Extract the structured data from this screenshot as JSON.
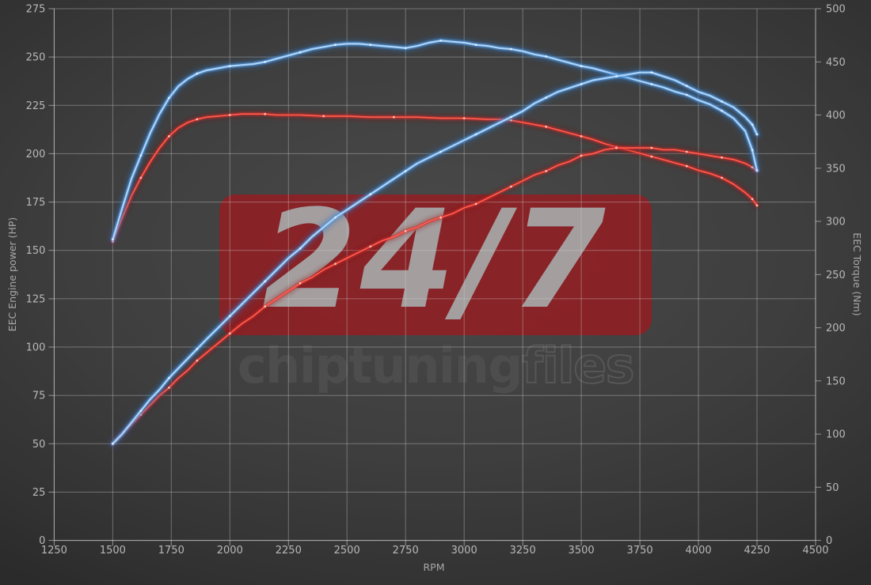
{
  "watermark": {
    "badge_text": "24/7",
    "brand_primary": "chiptuning",
    "brand_secondary": "files"
  },
  "colors": {
    "background_center": "#4a4a4a",
    "background_edge": "#2b2b2b",
    "grid": "#9e9e9e",
    "axis": "#c8c8c8",
    "tick_text": "#b8b8b8",
    "axis_title_text": "#a8a8a8",
    "watermark_badge": "#981a1f",
    "watermark_badge_text": "#a5a5a5",
    "brand_solid_text": "#4d4d4d",
    "brand_outline_text": "#565656",
    "blue_glow": "#2a6cb8",
    "blue_mid": "#4e97e0",
    "blue_core": "#aed3f7",
    "blue_dot": "#e3f2ff",
    "red_glow": "#8a1414",
    "red_mid": "#d32424",
    "red_core": "#ff6050",
    "red_dot": "#ffccc2"
  },
  "chart_data": {
    "type": "line",
    "xlabel": "RPM",
    "ylabel_left": "EEC Engine power (HP)",
    "ylabel_right": "EEC Torque (Nm)",
    "x_range": [
      1250,
      4500
    ],
    "y_left_range": [
      0,
      275
    ],
    "y_right_range": [
      0,
      500
    ],
    "x_ticks": [
      1250,
      1500,
      1750,
      2000,
      2250,
      2500,
      2750,
      3000,
      3250,
      3500,
      3750,
      4000,
      4250,
      4500
    ],
    "y_left_ticks": [
      0,
      25,
      50,
      75,
      100,
      125,
      150,
      175,
      200,
      225,
      250,
      275
    ],
    "y_right_ticks": [
      0,
      50,
      100,
      150,
      200,
      250,
      300,
      350,
      400,
      450,
      500
    ],
    "grid": true,
    "legend": "none",
    "series": [
      {
        "name": "original_torque_nm",
        "axis": "right",
        "color": "red",
        "points": [
          [
            1500,
            281
          ],
          [
            1540,
            303
          ],
          [
            1580,
            324
          ],
          [
            1620,
            341
          ],
          [
            1660,
            356
          ],
          [
            1700,
            369
          ],
          [
            1740,
            380
          ],
          [
            1780,
            388
          ],
          [
            1820,
            393
          ],
          [
            1860,
            396
          ],
          [
            1900,
            398
          ],
          [
            1950,
            399
          ],
          [
            2000,
            400
          ],
          [
            2050,
            401
          ],
          [
            2100,
            401
          ],
          [
            2150,
            401
          ],
          [
            2200,
            400
          ],
          [
            2300,
            400
          ],
          [
            2400,
            399
          ],
          [
            2500,
            399
          ],
          [
            2600,
            398
          ],
          [
            2700,
            398
          ],
          [
            2800,
            398
          ],
          [
            2900,
            397
          ],
          [
            3000,
            397
          ],
          [
            3100,
            396
          ],
          [
            3150,
            396
          ],
          [
            3200,
            395
          ],
          [
            3250,
            393
          ],
          [
            3300,
            391
          ],
          [
            3350,
            389
          ],
          [
            3400,
            386
          ],
          [
            3450,
            383
          ],
          [
            3500,
            380
          ],
          [
            3550,
            377
          ],
          [
            3600,
            373
          ],
          [
            3650,
            370
          ],
          [
            3700,
            367
          ],
          [
            3750,
            364
          ],
          [
            3800,
            361
          ],
          [
            3850,
            358
          ],
          [
            3900,
            355
          ],
          [
            3950,
            352
          ],
          [
            4000,
            348
          ],
          [
            4050,
            345
          ],
          [
            4100,
            341
          ],
          [
            4150,
            335
          ],
          [
            4200,
            327
          ],
          [
            4230,
            321
          ],
          [
            4250,
            315
          ]
        ]
      },
      {
        "name": "original_power_hp",
        "axis": "left",
        "color": "red",
        "points": [
          [
            1500,
            50
          ],
          [
            1540,
            55
          ],
          [
            1580,
            60
          ],
          [
            1620,
            65
          ],
          [
            1660,
            70
          ],
          [
            1700,
            75
          ],
          [
            1740,
            79
          ],
          [
            1780,
            84
          ],
          [
            1820,
            88
          ],
          [
            1860,
            93
          ],
          [
            1900,
            97
          ],
          [
            1950,
            102
          ],
          [
            2000,
            107
          ],
          [
            2050,
            112
          ],
          [
            2100,
            116
          ],
          [
            2150,
            121
          ],
          [
            2200,
            125
          ],
          [
            2250,
            129
          ],
          [
            2300,
            133
          ],
          [
            2350,
            136
          ],
          [
            2400,
            140
          ],
          [
            2450,
            143
          ],
          [
            2500,
            146
          ],
          [
            2550,
            149
          ],
          [
            2600,
            152
          ],
          [
            2650,
            155
          ],
          [
            2700,
            157
          ],
          [
            2750,
            160
          ],
          [
            2800,
            162
          ],
          [
            2850,
            165
          ],
          [
            2900,
            167
          ],
          [
            2950,
            169
          ],
          [
            3000,
            172
          ],
          [
            3050,
            174
          ],
          [
            3100,
            177
          ],
          [
            3150,
            180
          ],
          [
            3200,
            183
          ],
          [
            3250,
            186
          ],
          [
            3300,
            189
          ],
          [
            3350,
            191
          ],
          [
            3400,
            194
          ],
          [
            3450,
            196
          ],
          [
            3500,
            199
          ],
          [
            3550,
            200
          ],
          [
            3600,
            202
          ],
          [
            3650,
            203
          ],
          [
            3700,
            203
          ],
          [
            3750,
            203
          ],
          [
            3800,
            203
          ],
          [
            3850,
            202
          ],
          [
            3900,
            202
          ],
          [
            3950,
            201
          ],
          [
            4000,
            200
          ],
          [
            4050,
            199
          ],
          [
            4100,
            198
          ],
          [
            4150,
            197
          ],
          [
            4200,
            195
          ],
          [
            4230,
            193
          ],
          [
            4250,
            191
          ]
        ]
      },
      {
        "name": "tuned_torque_nm",
        "axis": "right",
        "color": "blue",
        "points": [
          [
            1500,
            283
          ],
          [
            1540,
            312
          ],
          [
            1580,
            340
          ],
          [
            1620,
            362
          ],
          [
            1660,
            383
          ],
          [
            1700,
            401
          ],
          [
            1740,
            416
          ],
          [
            1780,
            427
          ],
          [
            1820,
            434
          ],
          [
            1860,
            439
          ],
          [
            1900,
            442
          ],
          [
            1950,
            444
          ],
          [
            2000,
            446
          ],
          [
            2050,
            447
          ],
          [
            2100,
            448
          ],
          [
            2150,
            450
          ],
          [
            2200,
            453
          ],
          [
            2250,
            456
          ],
          [
            2300,
            459
          ],
          [
            2350,
            462
          ],
          [
            2400,
            464
          ],
          [
            2450,
            466
          ],
          [
            2500,
            467
          ],
          [
            2550,
            467
          ],
          [
            2600,
            466
          ],
          [
            2650,
            465
          ],
          [
            2700,
            464
          ],
          [
            2750,
            463
          ],
          [
            2800,
            465
          ],
          [
            2850,
            468
          ],
          [
            2900,
            470
          ],
          [
            2950,
            469
          ],
          [
            3000,
            468
          ],
          [
            3050,
            466
          ],
          [
            3100,
            465
          ],
          [
            3150,
            463
          ],
          [
            3200,
            462
          ],
          [
            3250,
            460
          ],
          [
            3300,
            457
          ],
          [
            3350,
            455
          ],
          [
            3400,
            452
          ],
          [
            3450,
            449
          ],
          [
            3500,
            446
          ],
          [
            3550,
            444
          ],
          [
            3600,
            441
          ],
          [
            3650,
            438
          ],
          [
            3700,
            435
          ],
          [
            3750,
            432
          ],
          [
            3800,
            429
          ],
          [
            3850,
            426
          ],
          [
            3900,
            422
          ],
          [
            3950,
            419
          ],
          [
            4000,
            414
          ],
          [
            4050,
            410
          ],
          [
            4100,
            404
          ],
          [
            4150,
            397
          ],
          [
            4200,
            385
          ],
          [
            4230,
            367
          ],
          [
            4250,
            348
          ]
        ]
      },
      {
        "name": "tuned_power_hp",
        "axis": "left",
        "color": "blue",
        "points": [
          [
            1500,
            50
          ],
          [
            1540,
            55
          ],
          [
            1580,
            61
          ],
          [
            1620,
            67
          ],
          [
            1660,
            73
          ],
          [
            1700,
            78
          ],
          [
            1740,
            84
          ],
          [
            1780,
            89
          ],
          [
            1820,
            94
          ],
          [
            1860,
            99
          ],
          [
            1900,
            104
          ],
          [
            1950,
            110
          ],
          [
            2000,
            116
          ],
          [
            2050,
            122
          ],
          [
            2100,
            128
          ],
          [
            2150,
            134
          ],
          [
            2200,
            140
          ],
          [
            2250,
            146
          ],
          [
            2300,
            151
          ],
          [
            2350,
            157
          ],
          [
            2400,
            162
          ],
          [
            2450,
            167
          ],
          [
            2500,
            171
          ],
          [
            2550,
            175
          ],
          [
            2600,
            179
          ],
          [
            2650,
            183
          ],
          [
            2700,
            187
          ],
          [
            2750,
            191
          ],
          [
            2800,
            195
          ],
          [
            2850,
            198
          ],
          [
            2900,
            201
          ],
          [
            2950,
            204
          ],
          [
            3000,
            207
          ],
          [
            3050,
            210
          ],
          [
            3100,
            213
          ],
          [
            3150,
            216
          ],
          [
            3200,
            219
          ],
          [
            3250,
            222
          ],
          [
            3300,
            226
          ],
          [
            3350,
            229
          ],
          [
            3400,
            232
          ],
          [
            3450,
            234
          ],
          [
            3500,
            236
          ],
          [
            3550,
            238
          ],
          [
            3600,
            239
          ],
          [
            3650,
            240
          ],
          [
            3700,
            241
          ],
          [
            3750,
            242
          ],
          [
            3800,
            242
          ],
          [
            3850,
            240
          ],
          [
            3900,
            238
          ],
          [
            3950,
            235
          ],
          [
            4000,
            232
          ],
          [
            4050,
            230
          ],
          [
            4100,
            227
          ],
          [
            4150,
            224
          ],
          [
            4200,
            219
          ],
          [
            4230,
            215
          ],
          [
            4250,
            210
          ]
        ]
      }
    ]
  }
}
